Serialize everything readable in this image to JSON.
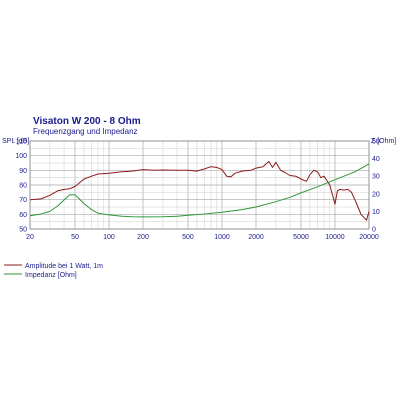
{
  "chart_data": {
    "type": "line",
    "title": "Visaton W 200 - 8 Ohm",
    "subtitle": "Frequenzgang und Impedanz",
    "colors": {
      "title": "#1a1a8c",
      "spl": "#8b1a1a",
      "impedance": "#2e9a3a",
      "grid": "#c8c8c8",
      "frame": "#888888"
    },
    "x_axis": {
      "scale": "log",
      "range": [
        20,
        20000
      ],
      "ticks": [
        20,
        50,
        100,
        200,
        500,
        1000,
        2000,
        5000,
        10000,
        20000
      ],
      "tick_labels": [
        "20",
        "50",
        "100",
        "200",
        "500",
        "1000",
        "2000",
        "5000",
        "10000",
        "20000"
      ]
    },
    "y_left": {
      "label": "SPL [dB]",
      "range": [
        50,
        110
      ],
      "ticks": [
        50,
        60,
        70,
        80,
        90,
        100,
        110
      ],
      "tick_labels": [
        "50",
        "60",
        "70",
        "80",
        "90",
        "100",
        "110"
      ]
    },
    "y_right": {
      "label": "Z [Ohm]",
      "range": [
        0,
        50
      ],
      "ticks": [
        0,
        10,
        20,
        30,
        40,
        50
      ],
      "tick_labels": [
        "0",
        "10",
        "20",
        "30",
        "40",
        "50"
      ]
    },
    "grid": true,
    "series": [
      {
        "name": "Amplitude bei 1 Watt, 1m",
        "axis": "left",
        "x": [
          20,
          25,
          30,
          35,
          40,
          45,
          50,
          60,
          70,
          80,
          100,
          130,
          160,
          200,
          250,
          300,
          400,
          500,
          600,
          700,
          800,
          900,
          1000,
          1100,
          1200,
          1300,
          1500,
          1800,
          2000,
          2300,
          2600,
          2800,
          3000,
          3300,
          3600,
          4000,
          4500,
          5000,
          5600,
          6000,
          6500,
          7000,
          7500,
          8000,
          9000,
          10000,
          10500,
          11000,
          12000,
          13000,
          14000,
          15000,
          16000,
          17000,
          18000,
          19000,
          20000
        ],
        "y": [
          70,
          70.5,
          73,
          76,
          77,
          77.5,
          79,
          84,
          86,
          87.5,
          88,
          89,
          89.5,
          90.5,
          90,
          90.2,
          90,
          90,
          89.5,
          91,
          92.5,
          92,
          90.5,
          86,
          85.5,
          88,
          89.5,
          90,
          91.5,
          92.5,
          96,
          92,
          95.5,
          90,
          88.5,
          86.5,
          86,
          84,
          82.5,
          87,
          90,
          89,
          85,
          86,
          80,
          67,
          76,
          77,
          76.5,
          77,
          75,
          70,
          65,
          60,
          58,
          56,
          62
        ]
      },
      {
        "name": "Impedanz [Ohm]",
        "axis": "right",
        "x": [
          20,
          25,
          30,
          35,
          40,
          45,
          50,
          55,
          60,
          70,
          80,
          100,
          130,
          160,
          200,
          300,
          400,
          500,
          700,
          1000,
          1500,
          2000,
          3000,
          4000,
          5000,
          7000,
          10000,
          15000,
          20000
        ],
        "y": [
          7.5,
          8.5,
          10,
          13,
          16.5,
          19.5,
          19.5,
          17,
          14.5,
          11,
          9,
          8,
          7.3,
          7,
          6.9,
          7,
          7.3,
          7.8,
          8.5,
          9.5,
          11,
          12.5,
          15.5,
          18,
          20.5,
          24,
          28,
          32.5,
          37
        ]
      }
    ]
  }
}
